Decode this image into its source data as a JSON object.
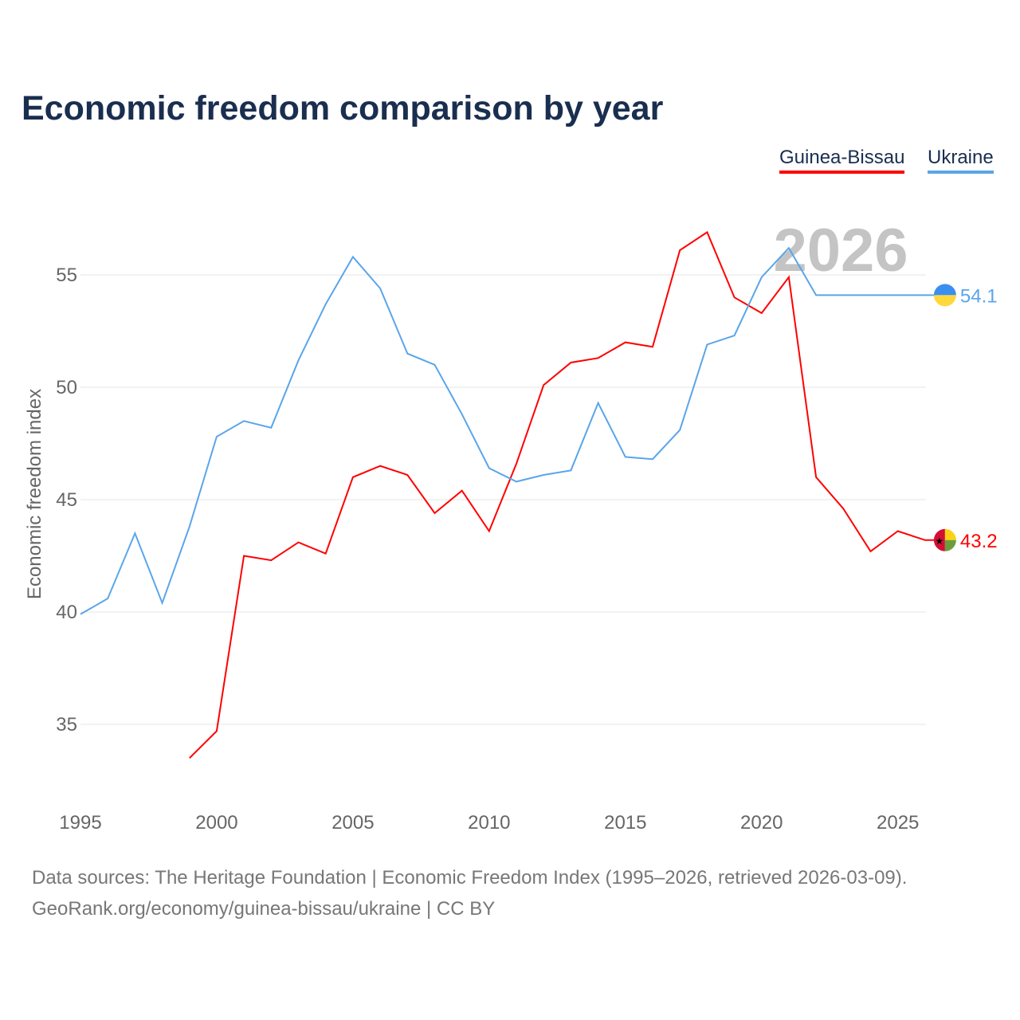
{
  "title": "Economic freedom comparison by year",
  "footer": {
    "line1": "Data sources: The Heritage Foundation | Economic Freedom Index (1995–2026, retrieved 2026-03-09).",
    "line2": "GeoRank.org/economy/guinea-bissau/ukraine | CC BY"
  },
  "chart_data": {
    "type": "line",
    "title": "Economic freedom comparison by year",
    "xlabel": "",
    "ylabel": "Economic freedom index",
    "xlim": [
      1995,
      2026
    ],
    "ylim": [
      32,
      58
    ],
    "xticks": [
      "1995",
      "2000",
      "2005",
      "2010",
      "2015",
      "2020",
      "2025"
    ],
    "yticks": [
      "35",
      "40",
      "45",
      "50",
      "55"
    ],
    "grid": true,
    "legend_position": "top-right",
    "watermark_year": "2026",
    "series": [
      {
        "name": "Guinea-Bissau",
        "color": "#ff0000",
        "end_label": "43.2",
        "x": [
          1999,
          2000,
          2001,
          2002,
          2003,
          2004,
          2005,
          2006,
          2007,
          2008,
          2009,
          2010,
          2011,
          2012,
          2013,
          2014,
          2015,
          2016,
          2017,
          2018,
          2019,
          2020,
          2021,
          2022,
          2023,
          2024,
          2025,
          2026
        ],
        "values": [
          33.5,
          34.7,
          42.5,
          42.3,
          43.1,
          42.6,
          46.0,
          46.5,
          46.1,
          44.4,
          45.4,
          43.6,
          46.6,
          50.1,
          51.1,
          51.3,
          52.0,
          51.8,
          56.1,
          56.9,
          54.0,
          53.3,
          54.9,
          46.0,
          44.6,
          42.7,
          43.6,
          43.2
        ]
      },
      {
        "name": "Ukraine",
        "color": "#5aa5ea",
        "end_label": "54.1",
        "x": [
          1995,
          1996,
          1997,
          1998,
          1999,
          2000,
          2001,
          2002,
          2003,
          2004,
          2005,
          2006,
          2007,
          2008,
          2009,
          2010,
          2011,
          2012,
          2013,
          2014,
          2015,
          2016,
          2017,
          2018,
          2019,
          2020,
          2021,
          2022,
          2023,
          2024,
          2025,
          2026
        ],
        "values": [
          39.9,
          40.6,
          43.5,
          40.4,
          43.8,
          47.8,
          48.5,
          48.2,
          51.2,
          53.7,
          55.8,
          54.4,
          51.5,
          51.0,
          48.8,
          46.4,
          45.8,
          46.1,
          46.3,
          49.3,
          46.9,
          46.8,
          48.1,
          51.9,
          52.3,
          54.9,
          56.2,
          54.1,
          54.1,
          54.1,
          54.1,
          54.1
        ]
      }
    ]
  }
}
